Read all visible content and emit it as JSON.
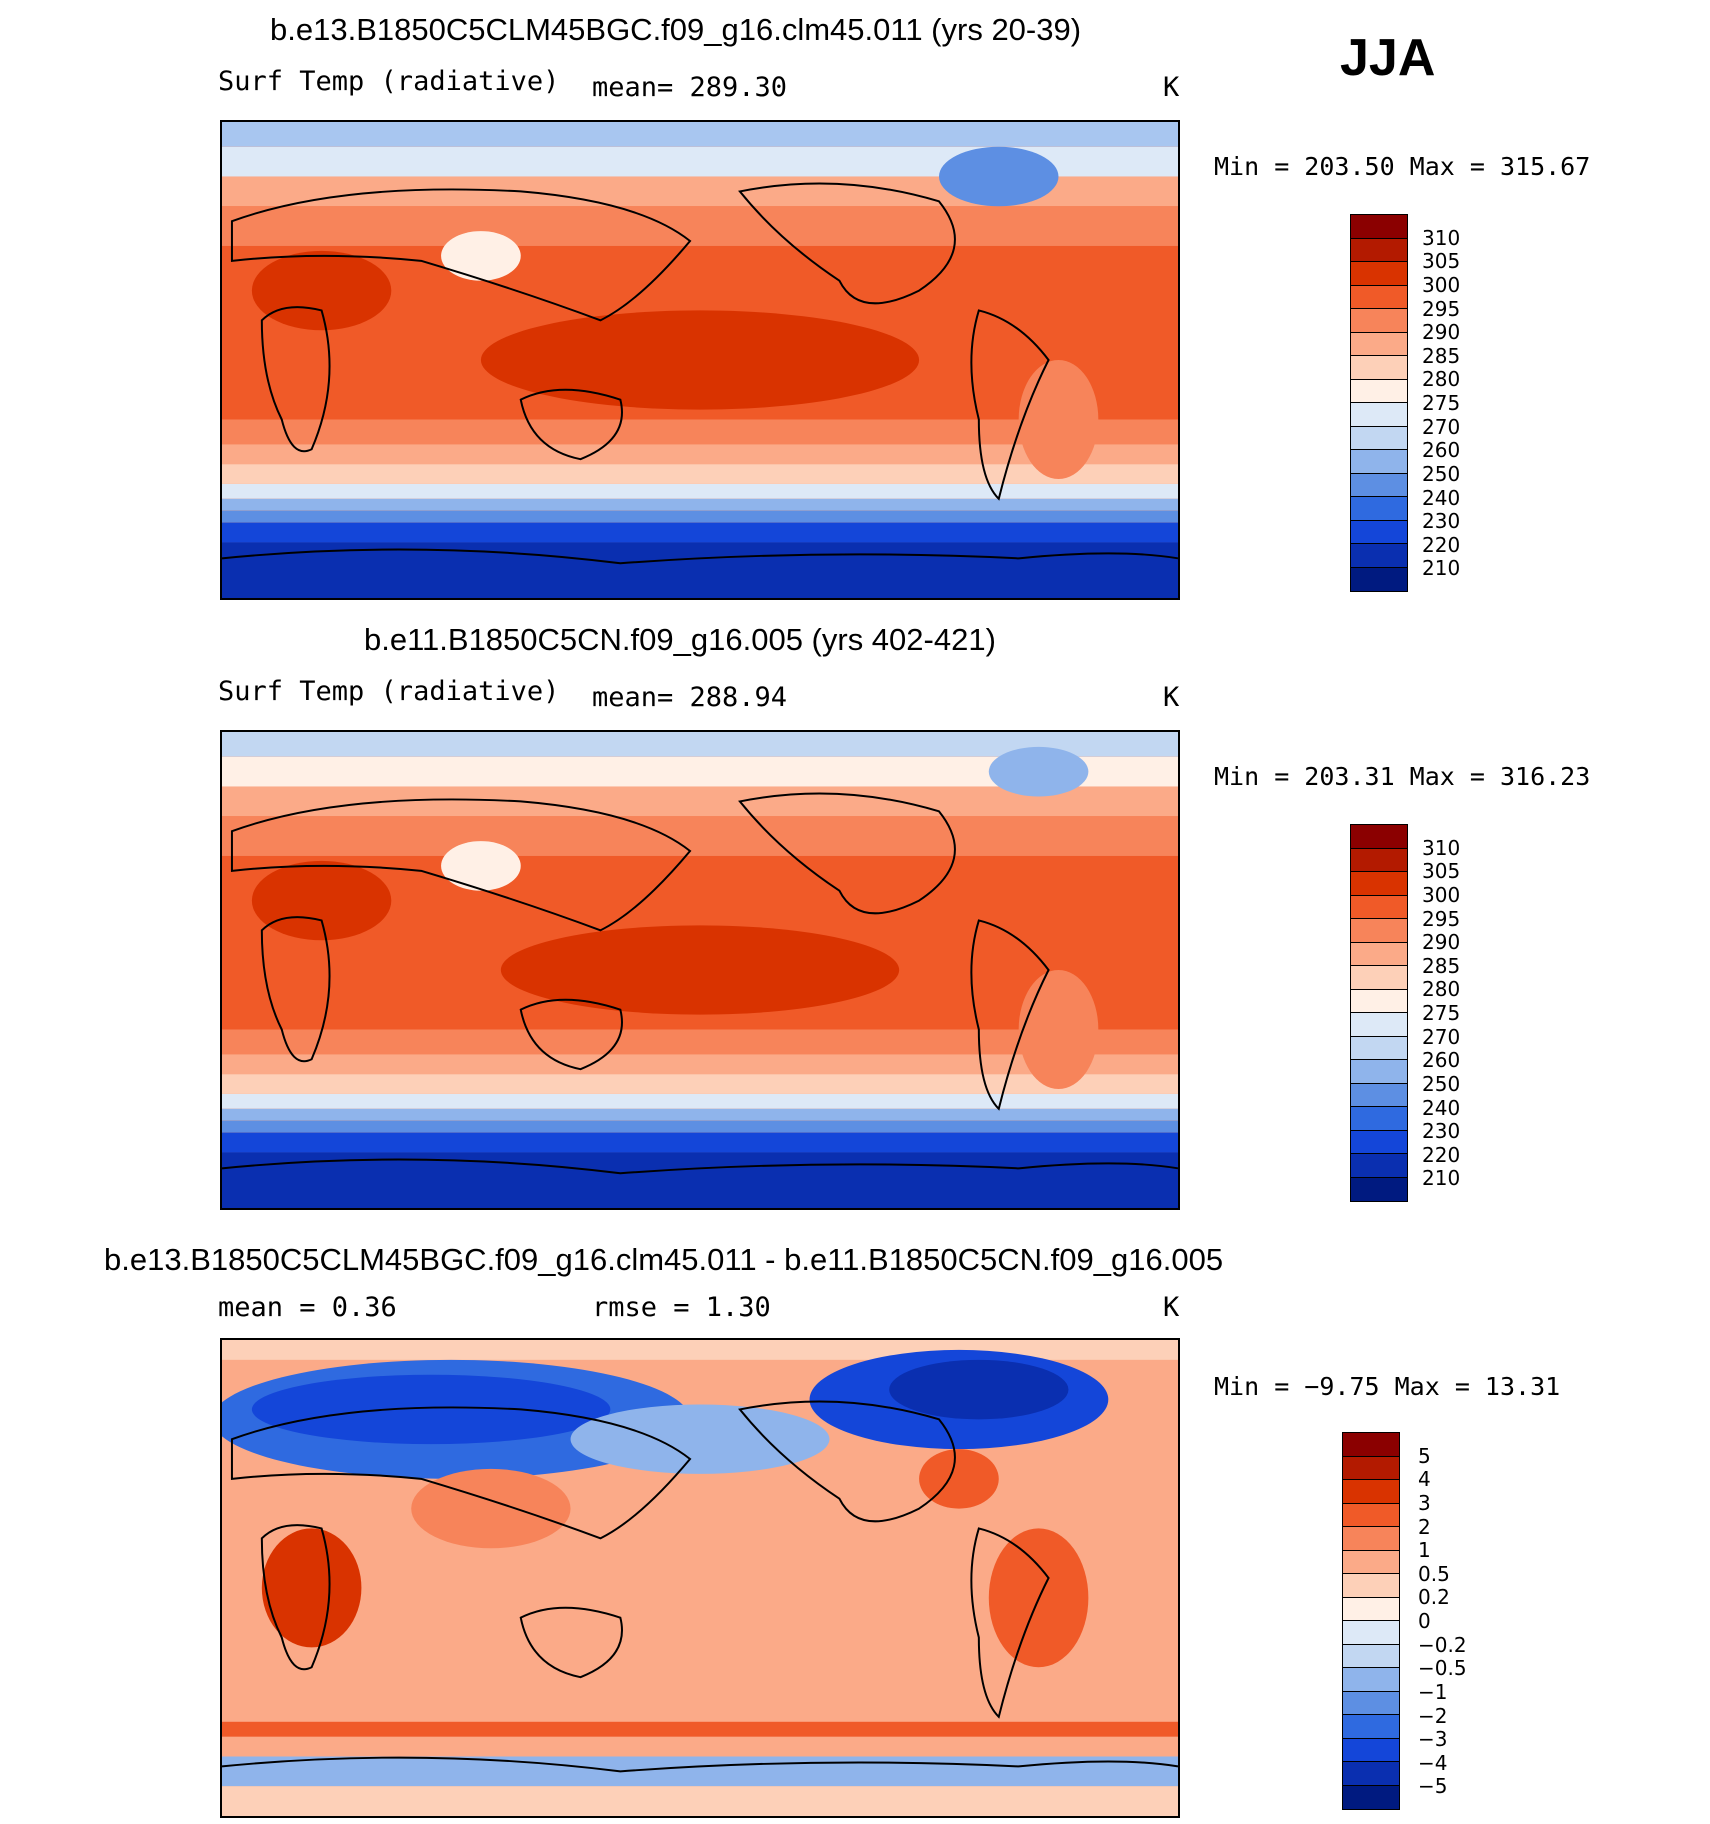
{
  "season": "JJA",
  "colors": {
    "temp_scale": [
      "#8b0000",
      "#b31a00",
      "#d93300",
      "#f05a28",
      "#f7845a",
      "#fbaa88",
      "#fdd0b8",
      "#fff0e6",
      "#dde9f7",
      "#c2d7f2",
      "#8fb4eb",
      "#5d8fe3",
      "#2f6ae0",
      "#1446d9",
      "#0a2fb0",
      "#001a80"
    ],
    "diff_scale": [
      "#8b0000",
      "#b31a00",
      "#d93300",
      "#f05a28",
      "#f7845a",
      "#fbaa88",
      "#fdd0b8",
      "#fff0e6",
      "#dde9f7",
      "#c2d7f2",
      "#8fb4eb",
      "#5d8fe3",
      "#2f6ae0",
      "#1446d9",
      "#0a2fb0",
      "#001a80"
    ]
  },
  "panels": [
    {
      "title": "b.e13.B1850C5CLM45BGC.f09_g16.clm45.011 (yrs 20-39)",
      "variable": "Surf Temp (radiative)",
      "stat1": "mean=  289.30",
      "stat2": "",
      "units": "K",
      "minmax": "Min  =  203.50  Max  =  315.67",
      "colorbar_labels": [
        "310",
        "305",
        "300",
        "295",
        "290",
        "285",
        "280",
        "275",
        "270",
        "260",
        "250",
        "240",
        "230",
        "220",
        "210"
      ],
      "map_kind": "temp"
    },
    {
      "title": "b.e11.B1850C5CN.f09_g16.005 (yrs 402-421)",
      "variable": "Surf Temp (radiative)",
      "stat1": "mean=  288.94",
      "stat2": "",
      "units": "K",
      "minmax": "Min  =  203.31  Max  =  316.23",
      "colorbar_labels": [
        "310",
        "305",
        "300",
        "295",
        "290",
        "285",
        "280",
        "275",
        "270",
        "260",
        "250",
        "240",
        "230",
        "220",
        "210"
      ],
      "map_kind": "temp"
    },
    {
      "title": "b.e13.B1850C5CLM45BGC.f09_g16.clm45.011 - b.e11.B1850C5CN.f09_g16.005",
      "variable": "mean  =     0.36",
      "stat1": "rmse  =     1.30",
      "stat2": "",
      "units": "K",
      "minmax": "Min  =    −9.75  Max  =    13.31",
      "colorbar_labels": [
        "5",
        "4",
        "3",
        "2",
        "1",
        "0.5",
        "0.2",
        "0",
        "−0.2",
        "−0.5",
        "−1",
        "−2",
        "−3",
        "−4",
        "−5"
      ],
      "map_kind": "diff"
    }
  ]
}
